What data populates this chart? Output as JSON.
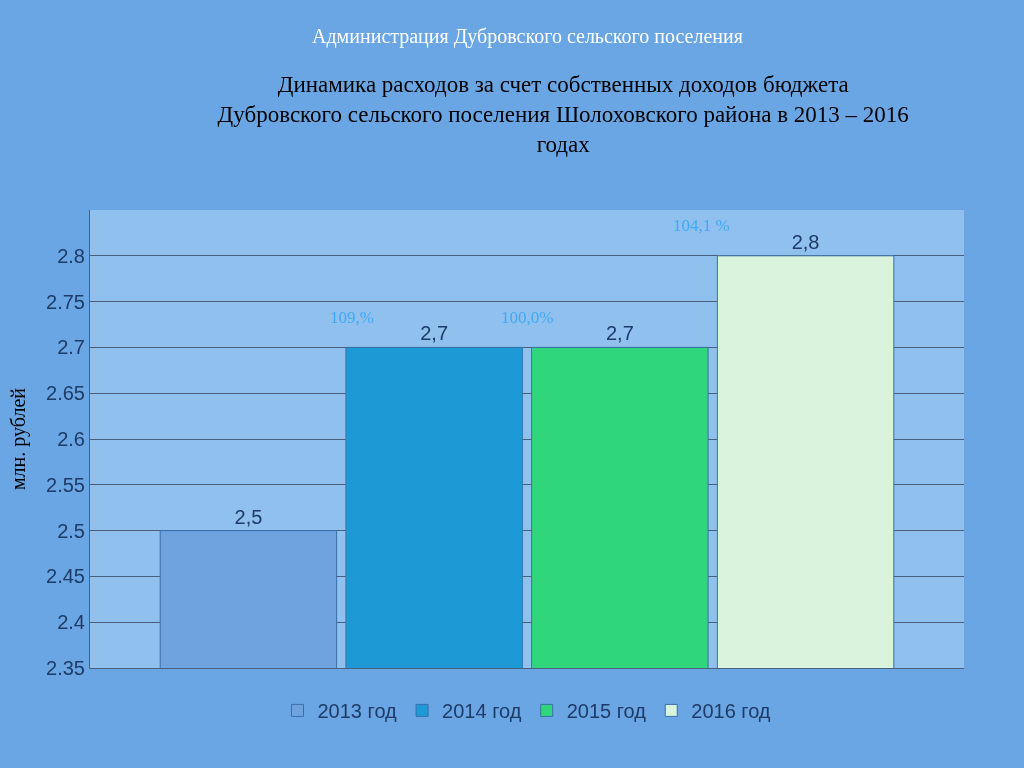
{
  "chart_data": {
    "type": "bar",
    "title": "Динамика расходов за счет собственных доходов бюджета\nДубровского сельского поселения Шолоховского района в 2013 – 2016\nгодах",
    "ylabel": "млн. рублей",
    "annotations": [
      "Администрация Дубровского сельского поселения",
      "109,%",
      "100,0%",
      "104,1 %"
    ],
    "categories": [
      null
    ],
    "series": [
      {
        "name": "2013 год",
        "color": "#6fa3e0",
        "values": [
          2.5
        ],
        "value_labels": [
          "2,5"
        ]
      },
      {
        "name": "2014 год",
        "color": "#1d9ad6",
        "values": [
          2.7
        ],
        "value_labels": [
          "2,7"
        ]
      },
      {
        "name": "2015 год",
        "color": "#2fd67c",
        "values": [
          2.7
        ],
        "value_labels": [
          "2,7"
        ]
      },
      {
        "name": "2016 год",
        "color": "#d9f3dd",
        "values": [
          2.8
        ],
        "value_labels": [
          "2,8"
        ]
      }
    ],
    "ylim": [
      2.35,
      2.85
    ],
    "yticks": [
      2.35,
      2.4,
      2.45,
      2.5,
      2.55,
      2.6,
      2.65,
      2.7,
      2.75,
      2.8
    ],
    "grid": "y",
    "legend": "bottom"
  }
}
